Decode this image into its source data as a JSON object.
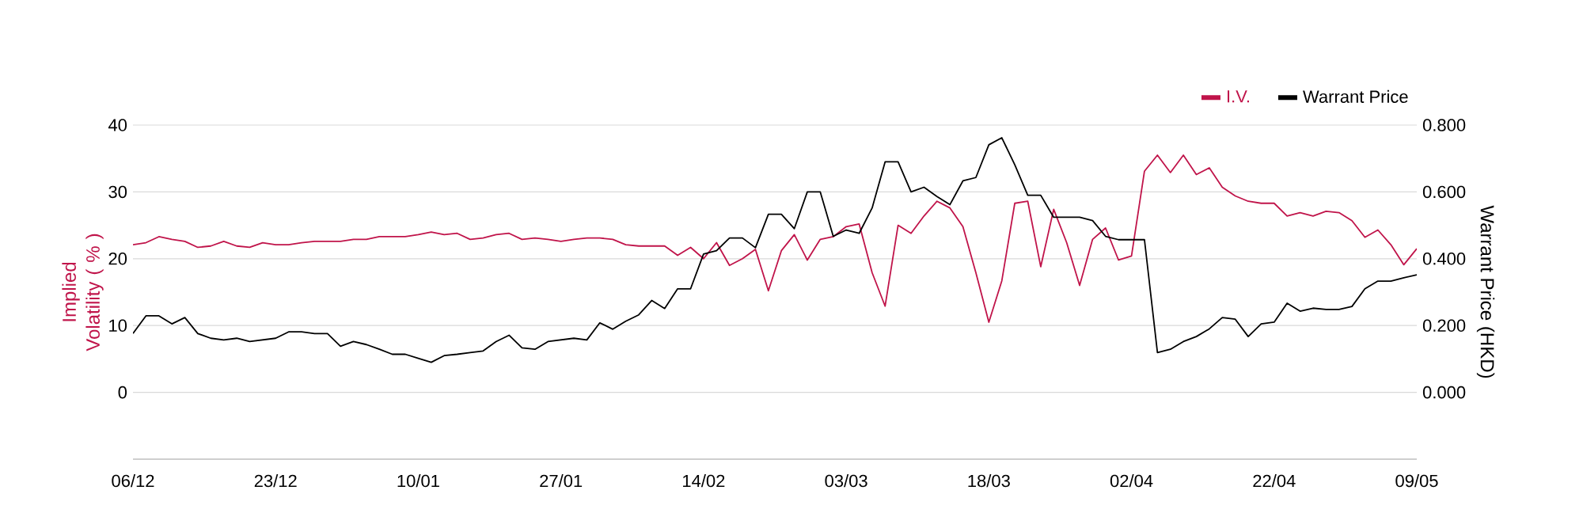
{
  "chart_data": {
    "type": "line",
    "categories": [
      "06/12",
      null,
      null,
      null,
      null,
      null,
      null,
      null,
      null,
      null,
      null,
      "23/12",
      null,
      null,
      null,
      null,
      null,
      null,
      null,
      null,
      null,
      null,
      "10/01",
      null,
      null,
      null,
      null,
      null,
      null,
      null,
      null,
      null,
      null,
      "27/01",
      null,
      null,
      null,
      null,
      null,
      null,
      null,
      null,
      null,
      null,
      "14/02",
      null,
      null,
      null,
      null,
      null,
      null,
      null,
      null,
      null,
      null,
      "03/03",
      null,
      null,
      null,
      null,
      null,
      null,
      null,
      null,
      null,
      null,
      "18/03",
      null,
      null,
      null,
      null,
      null,
      null,
      null,
      null,
      null,
      null,
      "02/04",
      null,
      null,
      null,
      null,
      null,
      null,
      null,
      null,
      null,
      null,
      "22/04",
      null,
      null,
      null,
      null,
      null,
      null,
      null,
      null,
      null,
      null,
      "09/05"
    ],
    "series": [
      {
        "name": "I.V.",
        "color": "#c0144a",
        "values": [
          22.1,
          22.4,
          23.3,
          22.9,
          22.6,
          21.7,
          21.9,
          22.6,
          21.9,
          21.7,
          22.4,
          22.1,
          22.1,
          22.4,
          22.6,
          22.6,
          22.6,
          22.9,
          22.9,
          23.3,
          23.3,
          23.3,
          23.6,
          24.0,
          23.6,
          23.8,
          22.9,
          23.1,
          23.6,
          23.8,
          22.9,
          23.1,
          22.9,
          22.6,
          22.9,
          23.1,
          23.1,
          22.9,
          22.1,
          21.9,
          21.9,
          21.9,
          20.5,
          21.7,
          20.0,
          22.4,
          19.0,
          20.0,
          21.4,
          15.2,
          21.2,
          23.6,
          19.8,
          22.9,
          23.3,
          24.8,
          25.2,
          17.9,
          12.9,
          25.0,
          23.8,
          26.4,
          28.6,
          27.6,
          24.8,
          17.9,
          10.5,
          16.7,
          28.3,
          28.6,
          18.8,
          27.4,
          22.4,
          16.0,
          22.9,
          24.6,
          19.8,
          20.4,
          33.1,
          35.5,
          32.9,
          35.5,
          32.6,
          33.6,
          30.7,
          29.4,
          28.6,
          28.3,
          28.3,
          26.4,
          26.9,
          26.4,
          27.1,
          26.9,
          25.7,
          23.2,
          24.3,
          22.1,
          19.1,
          21.5
        ]
      },
      {
        "name": "Warrant Price",
        "color": "#000000",
        "axis": "y2",
        "values": [
          0.176,
          0.229,
          0.229,
          0.205,
          0.224,
          0.176,
          0.162,
          0.157,
          0.162,
          0.152,
          0.157,
          0.162,
          0.181,
          0.181,
          0.176,
          0.176,
          0.138,
          0.152,
          0.143,
          0.129,
          0.114,
          0.114,
          0.102,
          0.09,
          0.11,
          0.114,
          0.119,
          0.124,
          0.152,
          0.171,
          0.133,
          0.129,
          0.152,
          0.157,
          0.162,
          0.157,
          0.208,
          0.189,
          0.213,
          0.232,
          0.275,
          0.251,
          0.31,
          0.31,
          0.414,
          0.424,
          0.462,
          0.462,
          0.433,
          0.533,
          0.533,
          0.49,
          0.6,
          0.6,
          0.467,
          0.486,
          0.476,
          0.552,
          0.69,
          0.69,
          0.6,
          0.614,
          0.586,
          0.562,
          0.633,
          0.643,
          0.741,
          0.762,
          0.681,
          0.59,
          0.59,
          0.524,
          0.524,
          0.524,
          0.514,
          0.467,
          0.457,
          0.457,
          0.457,
          0.119,
          0.129,
          0.152,
          0.167,
          0.19,
          0.224,
          0.219,
          0.167,
          0.205,
          0.21,
          0.267,
          0.243,
          0.252,
          0.248,
          0.248,
          0.257,
          0.31,
          0.333,
          0.333,
          0.343,
          0.352
        ]
      }
    ],
    "ylabel": "Implied Volatility ( % )",
    "y2label": "Warrant Price (HKD)",
    "ylim": [
      -10,
      40
    ],
    "yticks": [
      0,
      10,
      20,
      30,
      40
    ],
    "y2lim": [
      -0.2,
      0.8
    ],
    "y2ticks": [
      {
        "value": 0,
        "label": "0.000"
      },
      {
        "value": 0.2,
        "label": "0.200"
      },
      {
        "value": 0.4,
        "label": "0.400"
      },
      {
        "value": 0.6,
        "label": "0.600"
      },
      {
        "value": 0.8,
        "label": "0.800"
      }
    ],
    "grid": "y",
    "legend": "top right",
    "marker": "none",
    "line_style": "solid"
  }
}
